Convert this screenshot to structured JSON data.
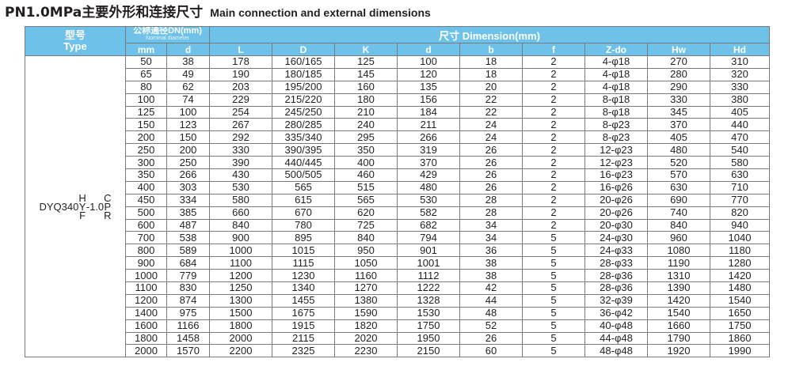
{
  "title": {
    "cn": "PN1.0MPa主要外形和连接尺寸",
    "en": "Main connection and external dimensions"
  },
  "header": {
    "type_cn": "型号",
    "type_en": "Type",
    "dn_cn": "公称通径DN(mm)",
    "dn_en": "Nominal diameter",
    "dim": "尺寸 Dimension(mm)",
    "cols": [
      "mm",
      "d",
      "L",
      "D",
      "K",
      "d",
      "b",
      "f",
      "Z-do",
      "Hw",
      "Hd"
    ]
  },
  "model": {
    "prefix": "DYQ340",
    "top_left": "H",
    "mid_left": "Y",
    "bottom_left": "F",
    "middle": "-1.0",
    "top_right": "C",
    "mid_right": "P",
    "bottom_right": "R"
  },
  "rows": [
    [
      "50",
      "38",
      "178",
      "160/165",
      "125",
      "100",
      "18",
      "2",
      "4-φ18",
      "270",
      "310"
    ],
    [
      "65",
      "49",
      "190",
      "180/185",
      "145",
      "120",
      "18",
      "2",
      "4-φ18",
      "280",
      "320"
    ],
    [
      "80",
      "62",
      "203",
      "195/200",
      "160",
      "135",
      "20",
      "2",
      "4-φ18",
      "290",
      "330"
    ],
    [
      "100",
      "74",
      "229",
      "215/220",
      "180",
      "156",
      "22",
      "2",
      "8-φ18",
      "330",
      "380"
    ],
    [
      "125",
      "100",
      "254",
      "245/250",
      "210",
      "184",
      "22",
      "2",
      "8-φ18",
      "345",
      "405"
    ],
    [
      "150",
      "123",
      "267",
      "280/285",
      "240",
      "211",
      "24",
      "2",
      "8-φ23",
      "370",
      "440"
    ],
    [
      "200",
      "150",
      "292",
      "335/340",
      "295",
      "266",
      "24",
      "2",
      "8-φ23",
      "405",
      "470"
    ],
    [
      "250",
      "200",
      "330",
      "390/395",
      "350",
      "319",
      "26",
      "2",
      "12-φ23",
      "480",
      "540"
    ],
    [
      "300",
      "250",
      "390",
      "440/445",
      "400",
      "370",
      "26",
      "2",
      "12-φ23",
      "520",
      "580"
    ],
    [
      "350",
      "266",
      "430",
      "500/505",
      "460",
      "429",
      "26",
      "2",
      "16-φ23",
      "570",
      "630"
    ],
    [
      "400",
      "303",
      "530",
      "565",
      "515",
      "480",
      "26",
      "2",
      "16-φ26",
      "630",
      "710"
    ],
    [
      "450",
      "334",
      "580",
      "615",
      "565",
      "530",
      "28",
      "2",
      "20-φ26",
      "690",
      "770"
    ],
    [
      "500",
      "385",
      "660",
      "670",
      "620",
      "582",
      "28",
      "2",
      "20-φ26",
      "740",
      "820"
    ],
    [
      "600",
      "487",
      "840",
      "780",
      "725",
      "682",
      "34",
      "2",
      "20-φ30",
      "840",
      "940"
    ],
    [
      "700",
      "538",
      "900",
      "895",
      "840",
      "794",
      "34",
      "5",
      "24-φ30",
      "960",
      "1040"
    ],
    [
      "800",
      "589",
      "1000",
      "1015",
      "950",
      "901",
      "36",
      "5",
      "24-φ33",
      "1080",
      "1180"
    ],
    [
      "900",
      "684",
      "1100",
      "1115",
      "1050",
      "1001",
      "38",
      "5",
      "28-φ33",
      "1190",
      "1280"
    ],
    [
      "1000",
      "779",
      "1200",
      "1230",
      "1160",
      "1112",
      "38",
      "5",
      "28-φ36",
      "1310",
      "1420"
    ],
    [
      "1100",
      "830",
      "1250",
      "1340",
      "1270",
      "1222",
      "42",
      "5",
      "28-φ36",
      "1390",
      "1480"
    ],
    [
      "1200",
      "874",
      "1300",
      "1455",
      "1380",
      "1328",
      "44",
      "5",
      "32-φ39",
      "1420",
      "1540"
    ],
    [
      "1400",
      "975",
      "1500",
      "1675",
      "1590",
      "1530",
      "48",
      "5",
      "36-φ42",
      "1540",
      "1650"
    ],
    [
      "1600",
      "1166",
      "1800",
      "1915",
      "1820",
      "1750",
      "52",
      "5",
      "40-φ48",
      "1660",
      "1750"
    ],
    [
      "1800",
      "1458",
      "2000",
      "2115",
      "2020",
      "1950",
      "26",
      "5",
      "44-φ48",
      "1790",
      "1860"
    ],
    [
      "2000",
      "1570",
      "2200",
      "2325",
      "2230",
      "2150",
      "60",
      "5",
      "48-φ48",
      "1920",
      "1990"
    ]
  ]
}
